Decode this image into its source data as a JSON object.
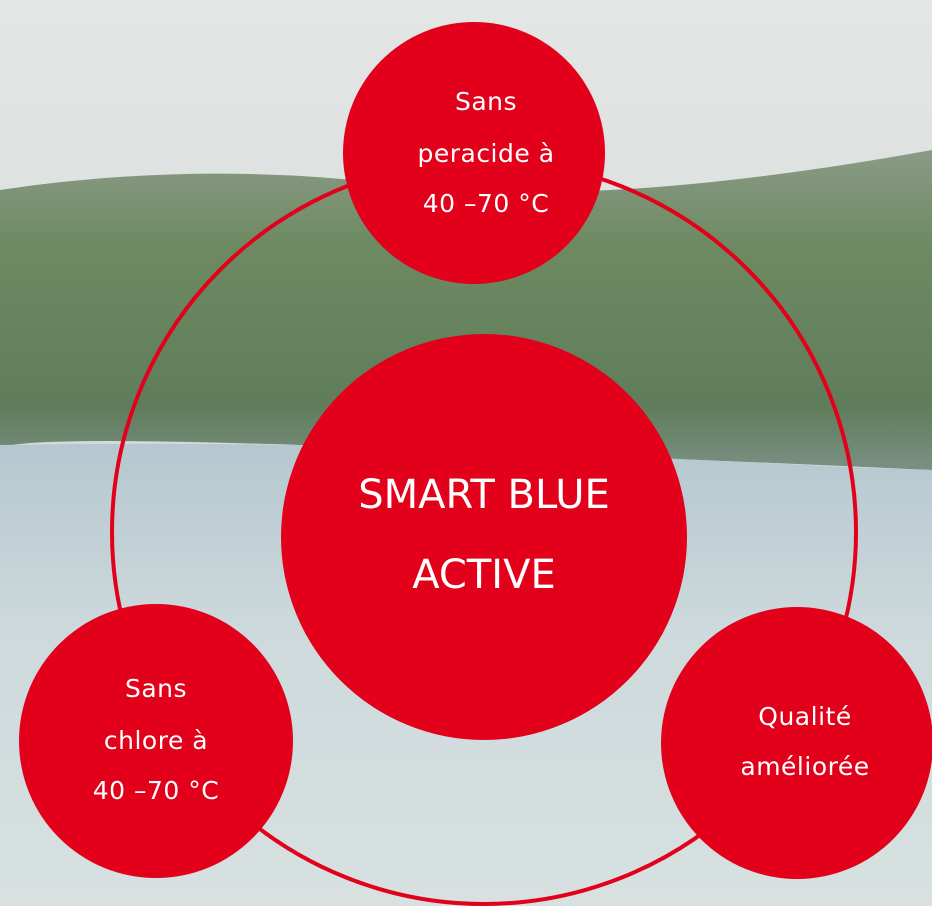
{
  "center": {
    "lines": [
      "SMART BLUE",
      "ACTIVE"
    ]
  },
  "nodes": [
    {
      "lines": [
        "Sans",
        "peracide à",
        "40 –70 °C"
      ]
    },
    {
      "lines": [
        "Sans",
        "chlore à",
        "40 –70 °C"
      ]
    },
    {
      "lines": [
        "Qualité",
        "améliorée"
      ]
    }
  ]
}
